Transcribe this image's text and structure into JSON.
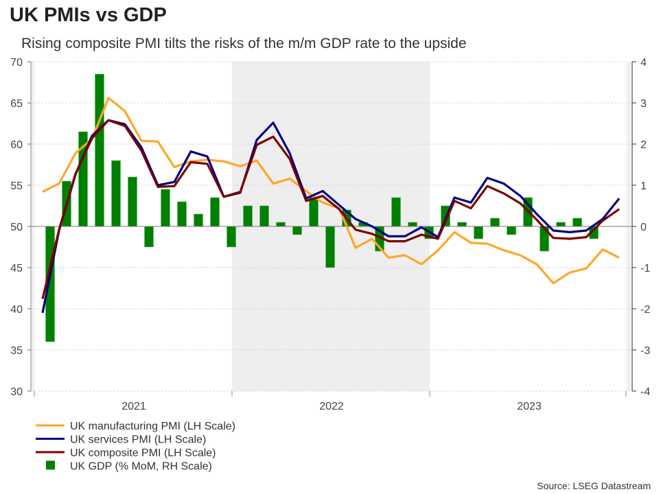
{
  "title": "UK PMIs vs GDP",
  "subtitle": "Rising composite PMI tilts the risks of the m/m GDP rate to the upside",
  "source": "Source: LSEG Datastream",
  "chart_data": {
    "type": "line+bar",
    "title": "UK PMIs vs GDP",
    "x_range": [
      "Jan 2021",
      "Dec 2023"
    ],
    "x_tick_labels": [
      "2021",
      "2022",
      "2023"
    ],
    "shaded_period": "2022",
    "left_axis": {
      "ylim": [
        30,
        70
      ],
      "ticks": [
        "30",
        "35",
        "40",
        "45",
        "50",
        "55",
        "60",
        "65",
        "70"
      ]
    },
    "right_axis": {
      "ylim": [
        -4,
        4
      ],
      "ticks": [
        "-4",
        "-3",
        "-2",
        "-1",
        "0",
        "1",
        "2",
        "3",
        "4"
      ]
    },
    "grid": true,
    "legend_position": "bottom-left",
    "series": [
      {
        "name": "UK manufacturing PMI (LH Scale)",
        "axis": "left",
        "kind": "line",
        "color": "#FFA726",
        "values": [
          54.2,
          55.2,
          58.9,
          60.6,
          65.6,
          64.0,
          60.4,
          60.3,
          57.2,
          57.9,
          58.1,
          57.9,
          57.3,
          58.0,
          55.2,
          55.8,
          54.3,
          52.9,
          52.2,
          47.4,
          48.5,
          46.2,
          46.5,
          45.4,
          47.1,
          49.3,
          48.0,
          47.9,
          47.1,
          46.5,
          45.4,
          43.1,
          44.4,
          44.9,
          47.2,
          46.2
        ]
      },
      {
        "name": "UK services PMI (LH Scale)",
        "axis": "left",
        "kind": "line",
        "color": "#000080",
        "values": [
          39.5,
          49.5,
          56.3,
          61.0,
          62.9,
          62.4,
          59.6,
          55.0,
          55.4,
          59.1,
          58.5,
          53.6,
          54.1,
          60.5,
          62.6,
          58.9,
          53.4,
          54.3,
          52.6,
          50.9,
          50.0,
          48.8,
          48.8,
          49.9,
          48.7,
          53.5,
          52.9,
          55.9,
          55.2,
          53.7,
          51.5,
          49.5,
          49.3,
          49.5,
          50.9,
          53.4
        ]
      },
      {
        "name": "UK composite PMI (LH Scale)",
        "axis": "left",
        "kind": "line",
        "color": "#7B0000",
        "values": [
          41.2,
          49.6,
          56.4,
          60.7,
          62.9,
          62.2,
          59.2,
          54.8,
          54.9,
          57.8,
          57.6,
          53.6,
          54.2,
          59.9,
          60.9,
          58.2,
          53.1,
          53.7,
          52.1,
          49.6,
          49.1,
          48.2,
          48.2,
          49.0,
          48.5,
          53.1,
          52.2,
          54.9,
          54.0,
          52.8,
          50.8,
          48.6,
          48.5,
          48.7,
          50.7,
          52.1
        ]
      },
      {
        "name": "UK GDP (% MoM, RH Scale)",
        "axis": "right",
        "kind": "bar",
        "color": "#008000",
        "values": [
          -2.8,
          1.1,
          2.3,
          3.7,
          1.6,
          1.2,
          -0.5,
          0.9,
          0.6,
          0.3,
          0.7,
          -0.5,
          0.5,
          0.5,
          0.1,
          -0.2,
          0.7,
          -1.0,
          0.4,
          0.1,
          -0.6,
          0.7,
          0.1,
          -0.3,
          0.5,
          0.1,
          -0.3,
          0.2,
          -0.2,
          0.7,
          -0.6,
          0.1,
          0.2,
          -0.3
        ]
      }
    ]
  }
}
